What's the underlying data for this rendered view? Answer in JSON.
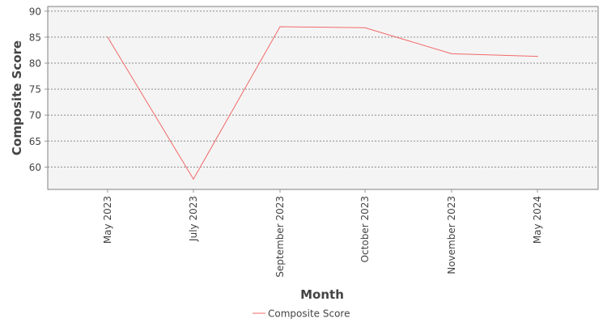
{
  "chart_data": {
    "type": "line",
    "title": "",
    "xlabel": "Month",
    "ylabel": "Composite Score",
    "categories": [
      "May 2023",
      "July 2023",
      "September 2023",
      "October 2023",
      "November 2023",
      "May 2024"
    ],
    "series": [
      {
        "name": "Composite Score",
        "values": [
          85.0,
          57.7,
          87.0,
          86.8,
          81.8,
          81.3
        ],
        "color": "#f26a6a"
      }
    ],
    "ylim": [
      55.7,
      90.9
    ],
    "yticks": [
      60,
      65,
      70,
      75,
      80,
      85,
      90
    ],
    "grid": true,
    "legend_position": "bottom-center",
    "colors": {
      "plot_background": "#f4f4f4",
      "grid": "#8c8c8c",
      "axis": "#999999"
    }
  }
}
